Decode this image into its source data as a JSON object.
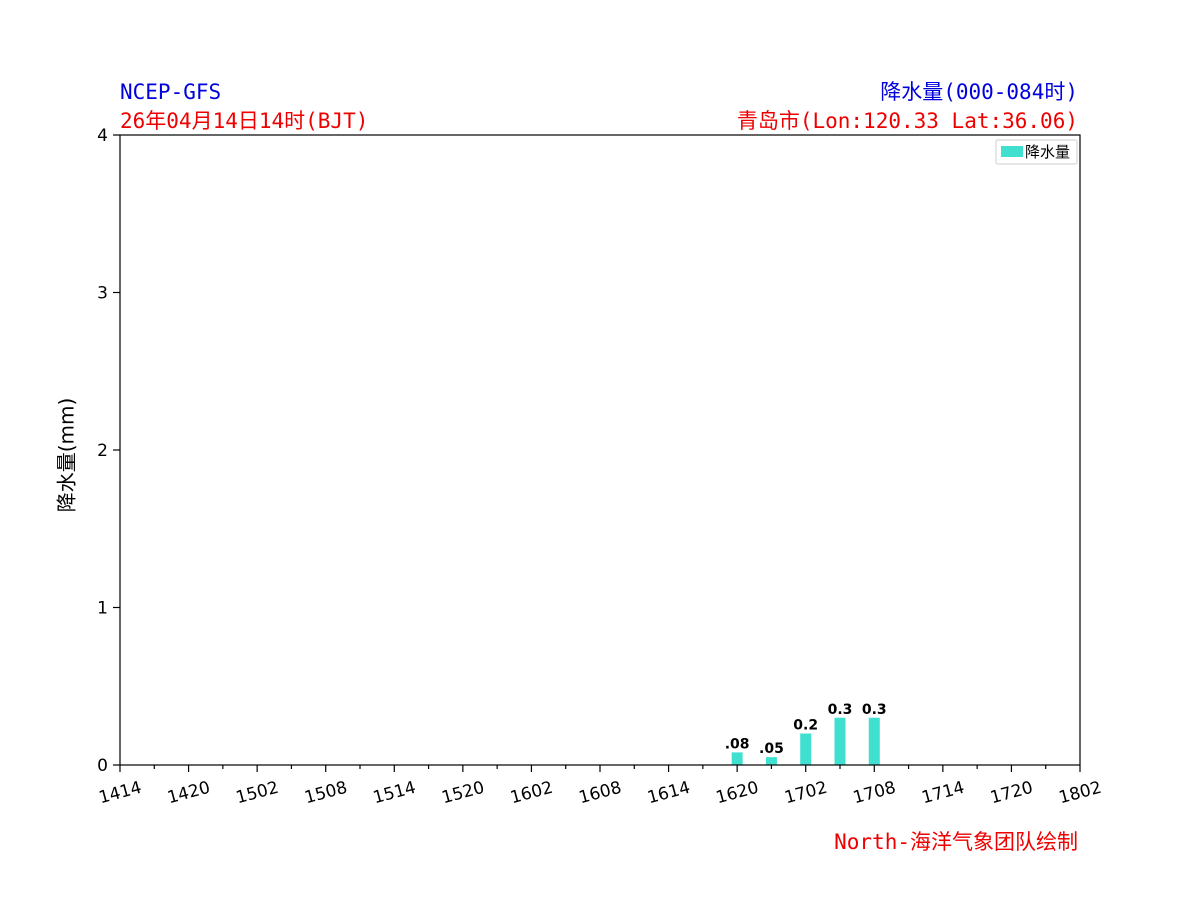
{
  "header": {
    "model": "NCEP-GFS",
    "date": "26年04月14日14时(BJT)",
    "title": "降水量(000-084时)",
    "location": "青岛市(Lon:120.33 Lat:36.06)"
  },
  "footer": {
    "credit": "North-海洋气象团队绘制"
  },
  "colors": {
    "header_model": "#0000dd",
    "header_title": "#0000dd",
    "header_date": "#ee0000",
    "header_location": "#ee0000",
    "footer_credit": "#ee0000",
    "bar": "#40e0d0"
  },
  "chart_data": {
    "type": "bar",
    "title": "降水量(000-084时)",
    "ylabel": "降水量(mm)",
    "xlabel": "",
    "ylim": [
      0,
      4
    ],
    "yticks": [
      0,
      1,
      2,
      3,
      4
    ],
    "x_range_hours": [
      0,
      84
    ],
    "xtick_labels": [
      "1414",
      "1420",
      "1502",
      "1508",
      "1514",
      "1520",
      "1602",
      "1608",
      "1614",
      "1620",
      "1702",
      "1708",
      "1714",
      "1720",
      "1802"
    ],
    "xtick_hours": [
      0,
      6,
      12,
      18,
      24,
      30,
      36,
      42,
      48,
      54,
      60,
      66,
      72,
      78,
      84
    ],
    "minor_tick_interval_hours": 3,
    "legend": {
      "entries": [
        "降水量"
      ],
      "position": "top-right"
    },
    "grid": false,
    "series": [
      {
        "name": "降水量",
        "x_hours": [
          54,
          57,
          60,
          63,
          66
        ],
        "values": [
          0.08,
          0.05,
          0.2,
          0.3,
          0.3
        ],
        "labels": [
          ".08",
          ".05",
          "0.2",
          "0.3",
          "0.3"
        ]
      }
    ]
  }
}
